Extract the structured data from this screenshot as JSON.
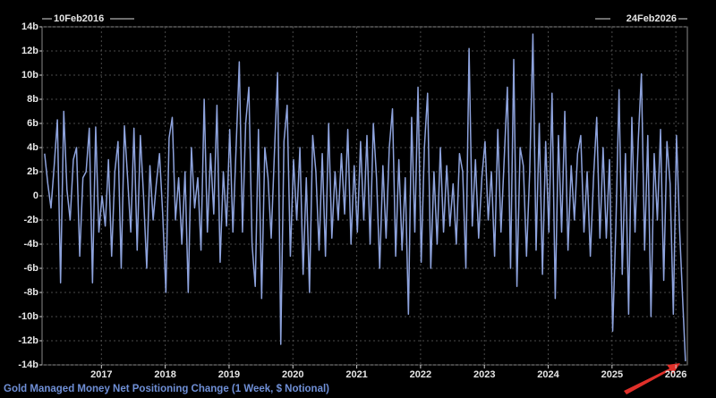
{
  "chart_data": {
    "type": "line",
    "start_label": "10Feb2016",
    "end_label": "24Feb2026",
    "x": [
      2016.11,
      2016.16,
      2016.21,
      2016.26,
      2016.31,
      2016.36,
      2016.41,
      2016.46,
      2016.51,
      2016.56,
      2016.61,
      2016.66,
      2016.71,
      2016.76,
      2016.81,
      2016.86,
      2016.91,
      2016.96,
      2017.01,
      2017.06,
      2017.11,
      2017.16,
      2017.21,
      2017.26,
      2017.31,
      2017.36,
      2017.41,
      2017.46,
      2017.51,
      2017.56,
      2017.61,
      2017.66,
      2017.71,
      2017.76,
      2017.81,
      2017.86,
      2017.91,
      2017.96,
      2018.01,
      2018.06,
      2018.11,
      2018.16,
      2018.21,
      2018.26,
      2018.31,
      2018.36,
      2018.41,
      2018.46,
      2018.51,
      2018.56,
      2018.61,
      2018.66,
      2018.71,
      2018.76,
      2018.81,
      2018.86,
      2018.91,
      2018.96,
      2019.01,
      2019.06,
      2019.11,
      2019.16,
      2019.21,
      2019.26,
      2019.31,
      2019.36,
      2019.41,
      2019.46,
      2019.51,
      2019.56,
      2019.61,
      2019.66,
      2019.71,
      2019.76,
      2019.81,
      2019.86,
      2019.91,
      2019.96,
      2020.01,
      2020.06,
      2020.11,
      2020.16,
      2020.21,
      2020.26,
      2020.31,
      2020.36,
      2020.41,
      2020.46,
      2020.51,
      2020.56,
      2020.61,
      2020.66,
      2020.71,
      2020.76,
      2020.81,
      2020.86,
      2020.91,
      2020.96,
      2021.01,
      2021.06,
      2021.11,
      2021.16,
      2021.21,
      2021.26,
      2021.31,
      2021.36,
      2021.41,
      2021.46,
      2021.51,
      2021.56,
      2021.61,
      2021.66,
      2021.71,
      2021.76,
      2021.81,
      2021.86,
      2021.91,
      2021.96,
      2022.01,
      2022.06,
      2022.11,
      2022.16,
      2022.21,
      2022.26,
      2022.31,
      2022.36,
      2022.41,
      2022.46,
      2022.51,
      2022.56,
      2022.61,
      2022.66,
      2022.71,
      2022.76,
      2022.81,
      2022.86,
      2022.91,
      2022.96,
      2023.01,
      2023.06,
      2023.11,
      2023.16,
      2023.21,
      2023.26,
      2023.31,
      2023.36,
      2023.41,
      2023.46,
      2023.51,
      2023.56,
      2023.61,
      2023.66,
      2023.71,
      2023.76,
      2023.81,
      2023.86,
      2023.91,
      2023.96,
      2024.01,
      2024.06,
      2024.11,
      2024.16,
      2024.21,
      2024.26,
      2024.31,
      2024.36,
      2024.41,
      2024.46,
      2024.51,
      2024.56,
      2024.61,
      2024.66,
      2024.71,
      2024.76,
      2024.81,
      2024.86,
      2024.91,
      2024.96,
      2025.01,
      2025.06,
      2025.11,
      2025.16,
      2025.21,
      2025.26,
      2025.31,
      2025.36,
      2025.41,
      2025.46,
      2025.51,
      2025.56,
      2025.61,
      2025.66,
      2025.71,
      2025.76,
      2025.81,
      2025.86,
      2025.91,
      2025.96,
      2026.01,
      2026.06,
      2026.11,
      2026.15
    ],
    "series": [
      {
        "name": "Gold Managed Money Net Positioning Change (1 Week, $ Notional)",
        "color": "#8ea3dd",
        "values": [
          3.5,
          1,
          -1,
          2.5,
          6.3,
          -7.2,
          7,
          0.5,
          -2,
          3,
          4,
          -5,
          1.5,
          2,
          5.6,
          -7.2,
          5.7,
          -3,
          0,
          -2.5,
          3,
          -5,
          2,
          4.5,
          -6,
          5.8,
          1.5,
          -3,
          5.6,
          -4.5,
          5,
          0,
          -6,
          2.5,
          -2,
          1,
          3.5,
          -1.5,
          -8,
          4.8,
          6.5,
          -2,
          1.5,
          -4,
          2,
          -8,
          4,
          -1,
          1.5,
          -4.5,
          8,
          -3,
          3.5,
          -1.5,
          7.5,
          -5.5,
          2,
          -2.5,
          5.5,
          -3,
          4,
          11.1,
          -3,
          6,
          9,
          -4,
          -7.5,
          5.5,
          -8.5,
          4,
          1.5,
          -3.5,
          3.5,
          10.2,
          -12.3,
          4.5,
          7.5,
          -5,
          3,
          -2,
          4,
          -6.5,
          1.5,
          -8,
          5,
          2,
          -4.5,
          3.5,
          -5,
          6,
          -3.5,
          2,
          -2,
          3.5,
          -1.5,
          5.5,
          -4,
          2.5,
          -3,
          4.5,
          -2,
          5,
          -4,
          6,
          1.5,
          -6,
          2.5,
          -3.5,
          4,
          7.2,
          -5,
          3,
          -4.5,
          1.5,
          -9.8,
          6.5,
          -3,
          9,
          -5.5,
          4,
          8.5,
          -6,
          2,
          -4,
          4,
          -3,
          2.5,
          -2.5,
          1,
          -4,
          3.5,
          2,
          -6,
          12.2,
          -2.5,
          3,
          -3.5,
          1.5,
          4.5,
          -2,
          2,
          -5,
          5.5,
          -3,
          3,
          9,
          -6,
          11.3,
          -7.5,
          4,
          2.5,
          -5,
          2,
          13.4,
          -4.5,
          6,
          -6.5,
          4.5,
          -3,
          8.5,
          -8.5,
          5,
          -3,
          7,
          -4.5,
          2.5,
          -2,
          3.5,
          5,
          -3,
          2,
          -5,
          1.5,
          6.5,
          -3.5,
          4,
          -3.5,
          3,
          -11.2,
          -2.5,
          8.8,
          -6.5,
          3.5,
          -9.8,
          6.5,
          -3,
          4.5,
          10.1,
          -4.5,
          5,
          -10,
          3.5,
          -2,
          5.5,
          -7,
          4.5,
          1,
          -9.8,
          5,
          -3,
          -9,
          -13.7
        ]
      }
    ],
    "xlim": [
      2016.07,
      2026.18
    ],
    "xticks": [
      2017,
      2018,
      2019,
      2020,
      2021,
      2022,
      2023,
      2024,
      2025,
      2026
    ],
    "ylim": [
      -14,
      14
    ],
    "yticks": [
      {
        "value": 14,
        "label": "14b"
      },
      {
        "value": 12,
        "label": "12b"
      },
      {
        "value": 10,
        "label": "10b"
      },
      {
        "value": 8,
        "label": "8b"
      },
      {
        "value": 6,
        "label": "6b"
      },
      {
        "value": 4,
        "label": "4b"
      },
      {
        "value": 2,
        "label": "2b"
      },
      0,
      {
        "value": -2,
        "label": "-2b"
      },
      {
        "value": -4,
        "label": "-4b"
      },
      {
        "value": -6,
        "label": "-6b"
      },
      {
        "value": -8,
        "label": "-8b"
      },
      {
        "value": -10,
        "label": "-10b"
      },
      {
        "value": -12,
        "label": "-12b"
      },
      {
        "value": -14,
        "label": "-14b"
      }
    ],
    "grid": true
  }
}
